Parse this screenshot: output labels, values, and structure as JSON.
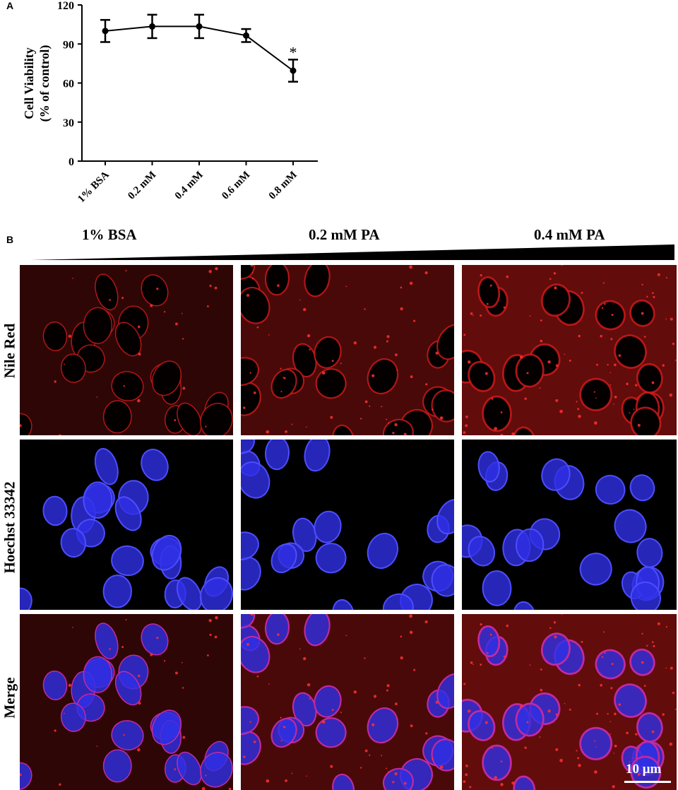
{
  "panel_a_letter": "A",
  "panel_b_letter": "B",
  "chart_data": {
    "type": "line",
    "ylabel_line1": "Cell Viability",
    "ylabel_line2": "(% of control)",
    "xlabel": "",
    "categories": [
      "1% BSA",
      "0.2 mM",
      "0.4 mM",
      "0.6 mM",
      "0.8 mM"
    ],
    "values": [
      100,
      103.5,
      103.5,
      96.5,
      69.5
    ],
    "errors": [
      8.5,
      9,
      9,
      5,
      8.5
    ],
    "significance": [
      "",
      "",
      "",
      "",
      "*"
    ],
    "ylim": [
      0,
      120
    ],
    "yticks": [
      0,
      30,
      60,
      90,
      120
    ],
    "grid": false,
    "line_color": "#000000"
  },
  "panel_b": {
    "columns": [
      "1% BSA",
      "0.2 mM PA",
      "0.4 mM PA"
    ],
    "rows": [
      "Nile Red",
      "Hoechst 33342",
      "Merge"
    ],
    "scale_bar_label": "10 μm",
    "colors": {
      "nile_red": "#d81a1a",
      "hoechst": "#2f2fe6",
      "background": "#000000"
    }
  }
}
